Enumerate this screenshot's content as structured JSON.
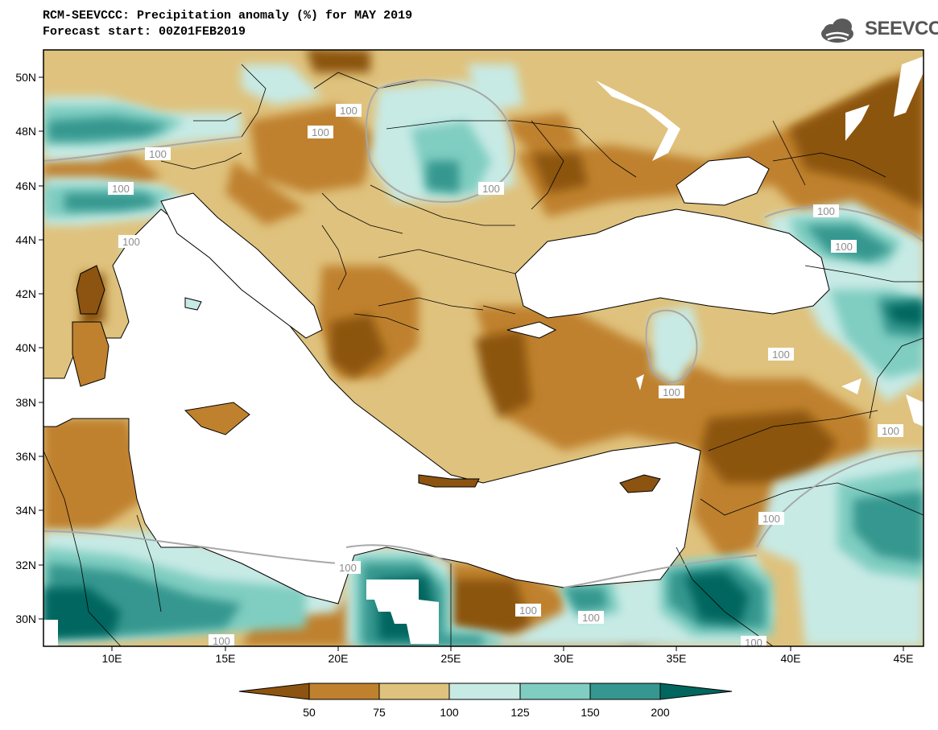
{
  "title": {
    "line1": "RCM-SEEVCCC: Precipitation anomaly (%) for MAY 2019",
    "line2": "Forecast start: 00Z01FEB2019"
  },
  "logo": {
    "text": "SEEVCCC",
    "icon": "cloud-icon",
    "color": "#5a5a5a"
  },
  "map": {
    "lat_ticks": [
      "50N",
      "48N",
      "46N",
      "44N",
      "42N",
      "40N",
      "38N",
      "36N",
      "34N",
      "32N",
      "30N"
    ],
    "lon_ticks": [
      "10E",
      "15E",
      "20E",
      "25E",
      "30E",
      "35E",
      "40E",
      "45E"
    ],
    "contour_labels": [
      "100",
      "100",
      "100",
      "100",
      "100",
      "100",
      "100",
      "100",
      "100",
      "100",
      "100",
      "100",
      "100",
      "100",
      "100",
      "100",
      "100",
      "100",
      "100",
      "100"
    ],
    "colors": {
      "lt50": "#8c5410",
      "c50_75": "#bf812d",
      "c75_100": "#dfc27d",
      "c100_125": "#c7eae5",
      "c125_150": "#80cdc1",
      "c150_200": "#35978f",
      "gt200": "#01665e",
      "sea": "#ffffff"
    }
  },
  "colorbar": {
    "labels": [
      "50",
      "75",
      "100",
      "125",
      "150",
      "200"
    ],
    "colors": [
      "#8c5410",
      "#bf812d",
      "#dfc27d",
      "#c7eae5",
      "#80cdc1",
      "#35978f",
      "#01665e"
    ]
  }
}
